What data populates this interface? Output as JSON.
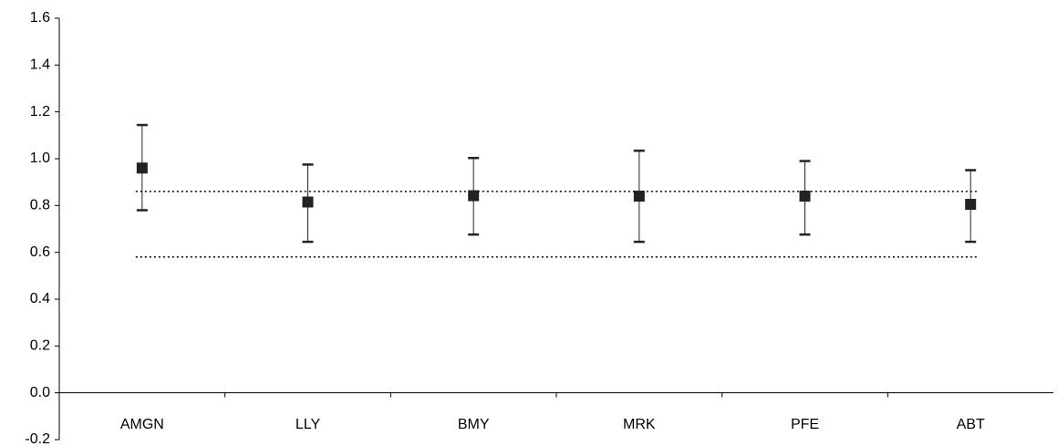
{
  "chart_data": {
    "type": "errorbar",
    "categories": [
      "AMGN",
      "LLY",
      "BMY",
      "MRK",
      "PFE",
      "ABT"
    ],
    "values": [
      0.96,
      0.815,
      0.842,
      0.84,
      0.84,
      0.805
    ],
    "lower": [
      0.78,
      0.645,
      0.676,
      0.645,
      0.676,
      0.645
    ],
    "upper": [
      1.144,
      0.975,
      1.003,
      1.034,
      0.99,
      0.951
    ],
    "reference_lines": [
      0.86,
      0.58
    ],
    "color": "#222222",
    "ylim": [
      -0.2,
      1.6
    ],
    "yticks": [
      -0.2,
      {
        "value": 0,
        "label": "0.0"
      },
      0.2,
      0.4,
      0.6,
      0.8,
      {
        "value": 1,
        "label": "1.0"
      },
      1.2,
      1.4,
      1.6
    ]
  }
}
